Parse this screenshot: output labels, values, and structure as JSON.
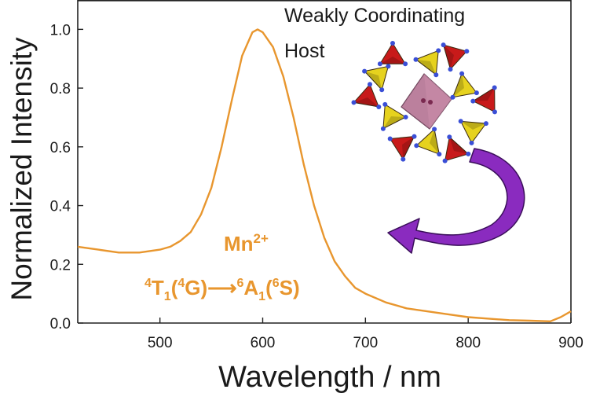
{
  "chart_data": {
    "type": "line",
    "title": "",
    "xlabel": "Wavelength / nm",
    "ylabel": "Normalized Intensity",
    "xlim": [
      420,
      900
    ],
    "ylim": [
      0.0,
      1.1
    ],
    "x_ticks": [
      500,
      600,
      700,
      800,
      900
    ],
    "y_ticks": [
      0.0,
      0.2,
      0.4,
      0.6,
      0.8,
      1.0
    ],
    "x_tick_labels": [
      "500",
      "600",
      "700",
      "800",
      "900"
    ],
    "y_tick_labels": [
      "0.0",
      "0.2",
      "0.4",
      "0.6",
      "0.8",
      "1.0"
    ],
    "grid": false,
    "series": [
      {
        "color": "#e8962e",
        "x": [
          420,
          440,
          460,
          480,
          500,
          510,
          520,
          530,
          540,
          550,
          560,
          570,
          580,
          590,
          595,
          600,
          610,
          620,
          630,
          640,
          650,
          660,
          670,
          680,
          690,
          700,
          720,
          740,
          760,
          780,
          800,
          820,
          840,
          860,
          880,
          890,
          900
        ],
        "y": [
          0.26,
          0.25,
          0.24,
          0.24,
          0.25,
          0.26,
          0.28,
          0.31,
          0.37,
          0.46,
          0.6,
          0.76,
          0.91,
          0.99,
          1.0,
          0.99,
          0.94,
          0.84,
          0.7,
          0.54,
          0.4,
          0.29,
          0.21,
          0.16,
          0.12,
          0.1,
          0.07,
          0.05,
          0.04,
          0.03,
          0.02,
          0.015,
          0.01,
          0.008,
          0.006,
          0.02,
          0.04
        ]
      }
    ],
    "annotations": {
      "ion_base": "Mn",
      "ion_charge": "2+",
      "transition": {
        "pre1": "4",
        "t1": "T",
        "sub1": "1",
        "open1": "(",
        "pre2": "4",
        "g": "G",
        "close1": ")",
        "arrow": "⟶",
        "pre3": "6",
        "a1": "A",
        "sub2": "1",
        "open2": "(",
        "pre4": "6",
        "s": "S",
        "close2": ")"
      }
    }
  },
  "inset": {
    "line1": "Weakly Coordinating",
    "line2": "Host",
    "tetra_red": "#c81a1a",
    "tetra_yellow": "#e6d21e",
    "octa_color": "#b06a8c",
    "atom_color": "#3a4fd6",
    "arrow_color": "#8a2bbf",
    "icons": [
      "crystal-structure-icon",
      "curved-arrow-icon"
    ]
  }
}
